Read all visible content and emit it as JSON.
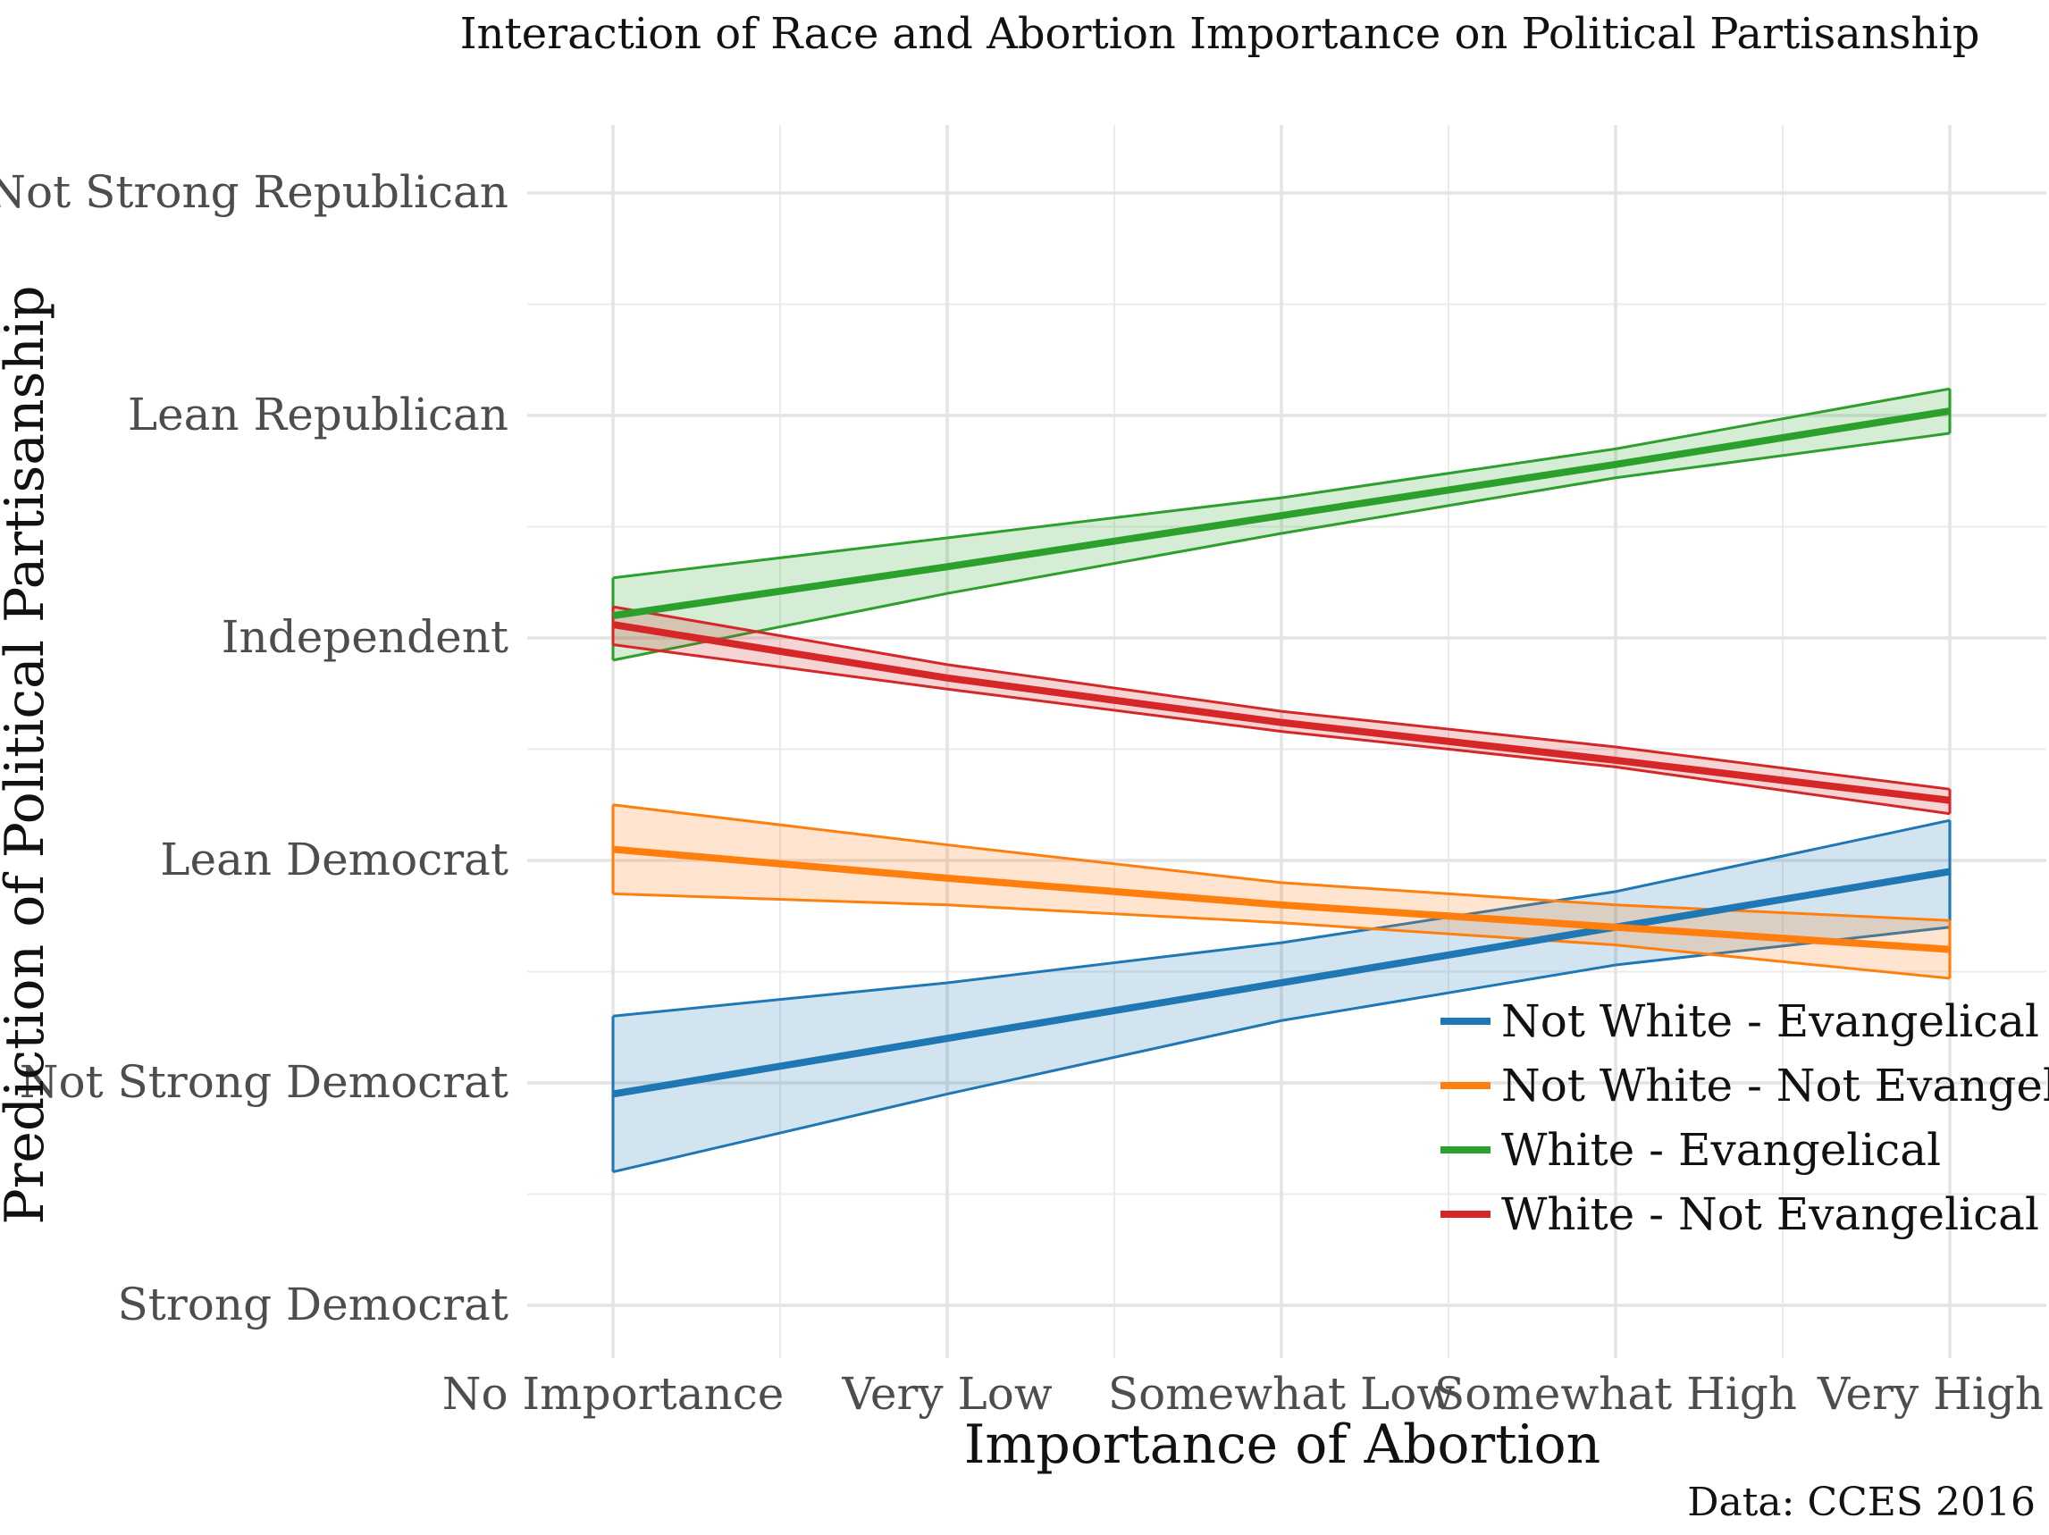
{
  "chart_data": {
    "type": "line",
    "title": "Interaction of Race and Abortion Importance on Political Partisanship",
    "xlabel": "Importance of Abortion",
    "ylabel": "Prediction of Political Partisanship",
    "caption": "Data: CCES 2016",
    "categories": [
      "No Importance",
      "Very Low",
      "Somewhat Low",
      "Somewhat High",
      "Very High"
    ],
    "y_ticks": [
      {
        "value": 1,
        "label": "Strong Democrat"
      },
      {
        "value": 2,
        "label": "Not Strong Democrat"
      },
      {
        "value": 3,
        "label": "Lean Democrat"
      },
      {
        "value": 4,
        "label": "Independent"
      },
      {
        "value": 5,
        "label": "Lean Republican"
      },
      {
        "value": 6,
        "label": "Not Strong Republican"
      }
    ],
    "ylim": [
      0.75,
      6.5
    ],
    "grid": true,
    "legend_position": "bottom-right",
    "series": [
      {
        "name": "Not White - Evangelical",
        "color": "#1F77B4",
        "values": [
          1.95,
          2.2,
          2.45,
          2.7,
          2.95
        ],
        "lower": [
          1.6,
          1.95,
          2.28,
          2.53,
          2.7
        ],
        "upper": [
          2.3,
          2.45,
          2.63,
          2.86,
          3.18
        ]
      },
      {
        "name": "Not White - Not Evangelical",
        "color": "#FF7F0E",
        "values": [
          3.05,
          2.92,
          2.8,
          2.7,
          2.6
        ],
        "lower": [
          2.85,
          2.8,
          2.72,
          2.62,
          2.47
        ],
        "upper": [
          3.25,
          3.07,
          2.9,
          2.8,
          2.73
        ]
      },
      {
        "name": "White - Evangelical",
        "color": "#2CA02C",
        "values": [
          4.1,
          4.32,
          4.55,
          4.78,
          5.02
        ],
        "lower": [
          3.9,
          4.2,
          4.47,
          4.72,
          4.92
        ],
        "upper": [
          4.27,
          4.45,
          4.63,
          4.85,
          5.12
        ]
      },
      {
        "name": "White - Not Evangelical",
        "color": "#D62728",
        "values": [
          4.06,
          3.82,
          3.62,
          3.45,
          3.27
        ],
        "lower": [
          3.97,
          3.77,
          3.58,
          3.42,
          3.21
        ],
        "upper": [
          4.14,
          3.88,
          3.67,
          3.51,
          3.32
        ]
      }
    ]
  }
}
